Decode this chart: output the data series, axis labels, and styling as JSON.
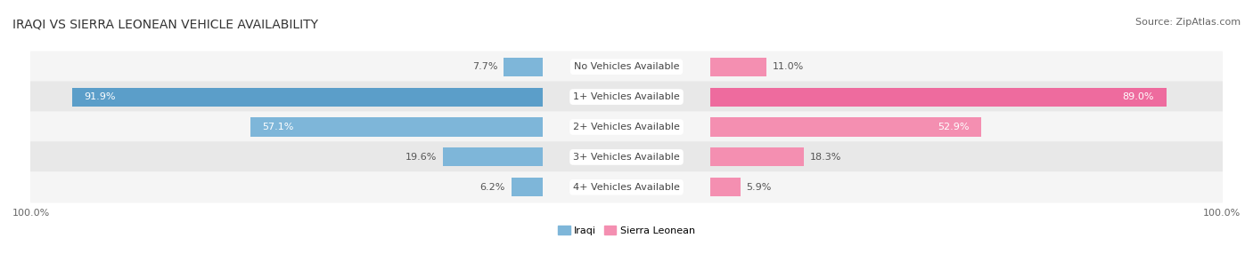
{
  "title": "IRAQI VS SIERRA LEONEAN VEHICLE AVAILABILITY",
  "source": "Source: ZipAtlas.com",
  "categories": [
    "No Vehicles Available",
    "1+ Vehicles Available",
    "2+ Vehicles Available",
    "3+ Vehicles Available",
    "4+ Vehicles Available"
  ],
  "iraqi_values": [
    7.7,
    91.9,
    57.1,
    19.6,
    6.2
  ],
  "sierra_values": [
    11.0,
    89.0,
    52.9,
    18.3,
    5.9
  ],
  "iraqi_color": "#7EB6D9",
  "sierra_color": "#F48FB1",
  "iraqi_color_strong": "#5B9EC9",
  "sierra_color_strong": "#EE6B9E",
  "iraqi_label": "Iraqi",
  "sierra_label": "Sierra Leonean",
  "max_value": 100.0,
  "bar_height": 0.62,
  "background_color": "#ffffff",
  "row_colors": [
    "#f5f5f5",
    "#e8e8e8"
  ],
  "axis_label_left": "100.0%",
  "axis_label_right": "100.0%",
  "title_fontsize": 10,
  "source_fontsize": 8,
  "label_fontsize": 8,
  "category_fontsize": 8,
  "legend_fontsize": 8,
  "value_threshold_inside": 20
}
